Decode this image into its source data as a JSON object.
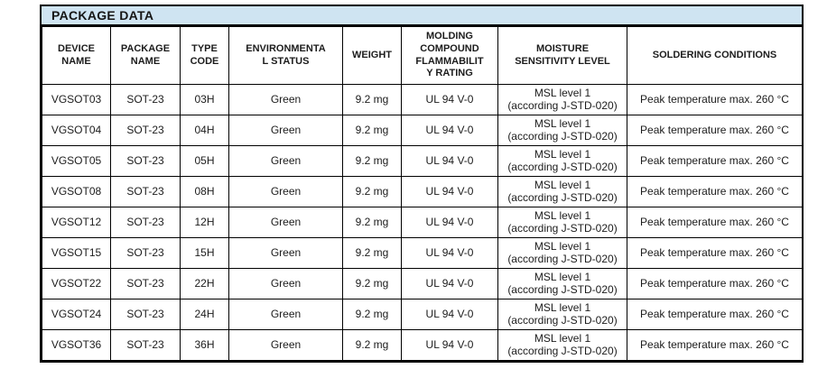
{
  "title": "PACKAGE DATA",
  "colors": {
    "title_bar_bg": "#cfe4f2",
    "border": "#000000",
    "text": "#1c1c1c",
    "background": "#ffffff"
  },
  "table": {
    "columns": [
      {
        "id": "device-name",
        "label": "DEVICE\nNAME"
      },
      {
        "id": "package-name",
        "label": "PACKAGE\nNAME"
      },
      {
        "id": "type-code",
        "label": "TYPE\nCODE"
      },
      {
        "id": "environmental-status",
        "label": "ENVIRONMENTA\nL STATUS"
      },
      {
        "id": "weight",
        "label": "WEIGHT"
      },
      {
        "id": "molding-compound-flammability-rating",
        "label": "MOLDING\nCOMPOUND\nFLAMMABILIT\nY RATING"
      },
      {
        "id": "moisture-sensitivity-level",
        "label": "MOISTURE\nSENSITIVITY LEVEL"
      },
      {
        "id": "soldering-conditions",
        "label": "SOLDERING CONDITIONS"
      }
    ],
    "rows": [
      [
        "VGSOT03",
        "SOT-23",
        "03H",
        "Green",
        "9.2 mg",
        "UL 94 V-0",
        "MSL level 1\n(according J-STD-020)",
        "Peak temperature max. 260 °C"
      ],
      [
        "VGSOT04",
        "SOT-23",
        "04H",
        "Green",
        "9.2 mg",
        "UL 94 V-0",
        "MSL level 1\n(according J-STD-020)",
        "Peak temperature max. 260 °C"
      ],
      [
        "VGSOT05",
        "SOT-23",
        "05H",
        "Green",
        "9.2 mg",
        "UL 94 V-0",
        "MSL level 1\n(according J-STD-020)",
        "Peak temperature max. 260 °C"
      ],
      [
        "VGSOT08",
        "SOT-23",
        "08H",
        "Green",
        "9.2 mg",
        "UL 94 V-0",
        "MSL level 1\n(according J-STD-020)",
        "Peak temperature max. 260 °C"
      ],
      [
        "VGSOT12",
        "SOT-23",
        "12H",
        "Green",
        "9.2 mg",
        "UL 94 V-0",
        "MSL level 1\n(according J-STD-020)",
        "Peak temperature max. 260 °C"
      ],
      [
        "VGSOT15",
        "SOT-23",
        "15H",
        "Green",
        "9.2 mg",
        "UL 94 V-0",
        "MSL level 1\n(according J-STD-020)",
        "Peak temperature max. 260 °C"
      ],
      [
        "VGSOT22",
        "SOT-23",
        "22H",
        "Green",
        "9.2 mg",
        "UL 94 V-0",
        "MSL level 1\n(according J-STD-020)",
        "Peak temperature max. 260 °C"
      ],
      [
        "VGSOT24",
        "SOT-23",
        "24H",
        "Green",
        "9.2 mg",
        "UL 94 V-0",
        "MSL level 1\n(according J-STD-020)",
        "Peak temperature max. 260 °C"
      ],
      [
        "VGSOT36",
        "SOT-23",
        "36H",
        "Green",
        "9.2 mg",
        "UL 94 V-0",
        "MSL level 1\n(according J-STD-020)",
        "Peak temperature max. 260 °C"
      ]
    ]
  }
}
